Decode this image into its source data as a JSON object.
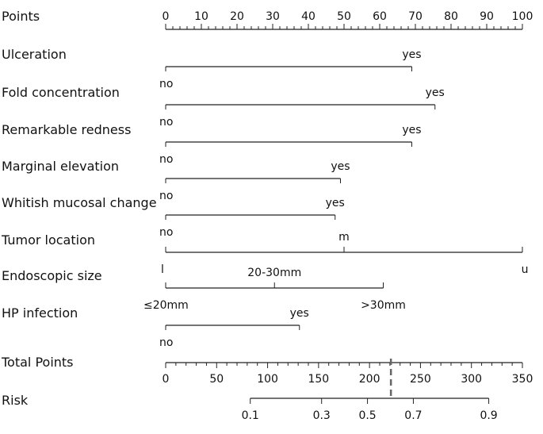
{
  "chart_data": {
    "type": "nomogram",
    "points_scale": {
      "label": "Points",
      "min": 0,
      "max": 100,
      "major_ticks": [
        0,
        10,
        20,
        30,
        40,
        50,
        60,
        70,
        80,
        90,
        100
      ],
      "minor_step": 2
    },
    "variables": [
      {
        "label": "Ulceration",
        "levels": [
          {
            "name": "no",
            "points": 0
          },
          {
            "name": "yes",
            "points": 69
          }
        ]
      },
      {
        "label": "Fold concentration",
        "levels": [
          {
            "name": "no",
            "points": 0
          },
          {
            "name": "yes",
            "points": 75.5
          }
        ]
      },
      {
        "label": "Remarkable redness",
        "levels": [
          {
            "name": "no",
            "points": 0
          },
          {
            "name": "yes",
            "points": 69
          }
        ]
      },
      {
        "label": "Marginal elevation",
        "levels": [
          {
            "name": "no",
            "points": 0
          },
          {
            "name": "yes",
            "points": 49
          }
        ]
      },
      {
        "label": "Whitish mucosal change",
        "levels": [
          {
            "name": "no",
            "points": 0
          },
          {
            "name": "yes",
            "points": 47.5
          }
        ]
      },
      {
        "label": "Tumor location",
        "levels": [
          {
            "name": "l",
            "points": 0
          },
          {
            "name": "m",
            "points": 50
          },
          {
            "name": "u",
            "points": 100
          }
        ]
      },
      {
        "label": "Endoscopic size",
        "levels": [
          {
            "name": "≤20mm",
            "points": 0
          },
          {
            "name": "20-30mm",
            "points": 30.5
          },
          {
            "name": ">30mm",
            "points": 61
          }
        ]
      },
      {
        "label": "HP infection",
        "levels": [
          {
            "name": "no",
            "points": 0
          },
          {
            "name": "yes",
            "points": 37.5
          }
        ]
      }
    ],
    "total_points": {
      "label": "Total Points",
      "min": 0,
      "max": 350,
      "major_ticks": [
        0,
        50,
        100,
        150,
        200,
        250,
        300,
        350
      ],
      "minor_step": 10,
      "cutoff": 221
    },
    "risk": {
      "label": "Risk",
      "ticks": [
        {
          "value": "0.1",
          "total_points": 83
        },
        {
          "value": "0.3",
          "total_points": 153
        },
        {
          "value": "0.5",
          "total_points": 198
        },
        {
          "value": "0.7",
          "total_points": 243
        },
        {
          "value": "0.9",
          "total_points": 317
        }
      ]
    }
  }
}
